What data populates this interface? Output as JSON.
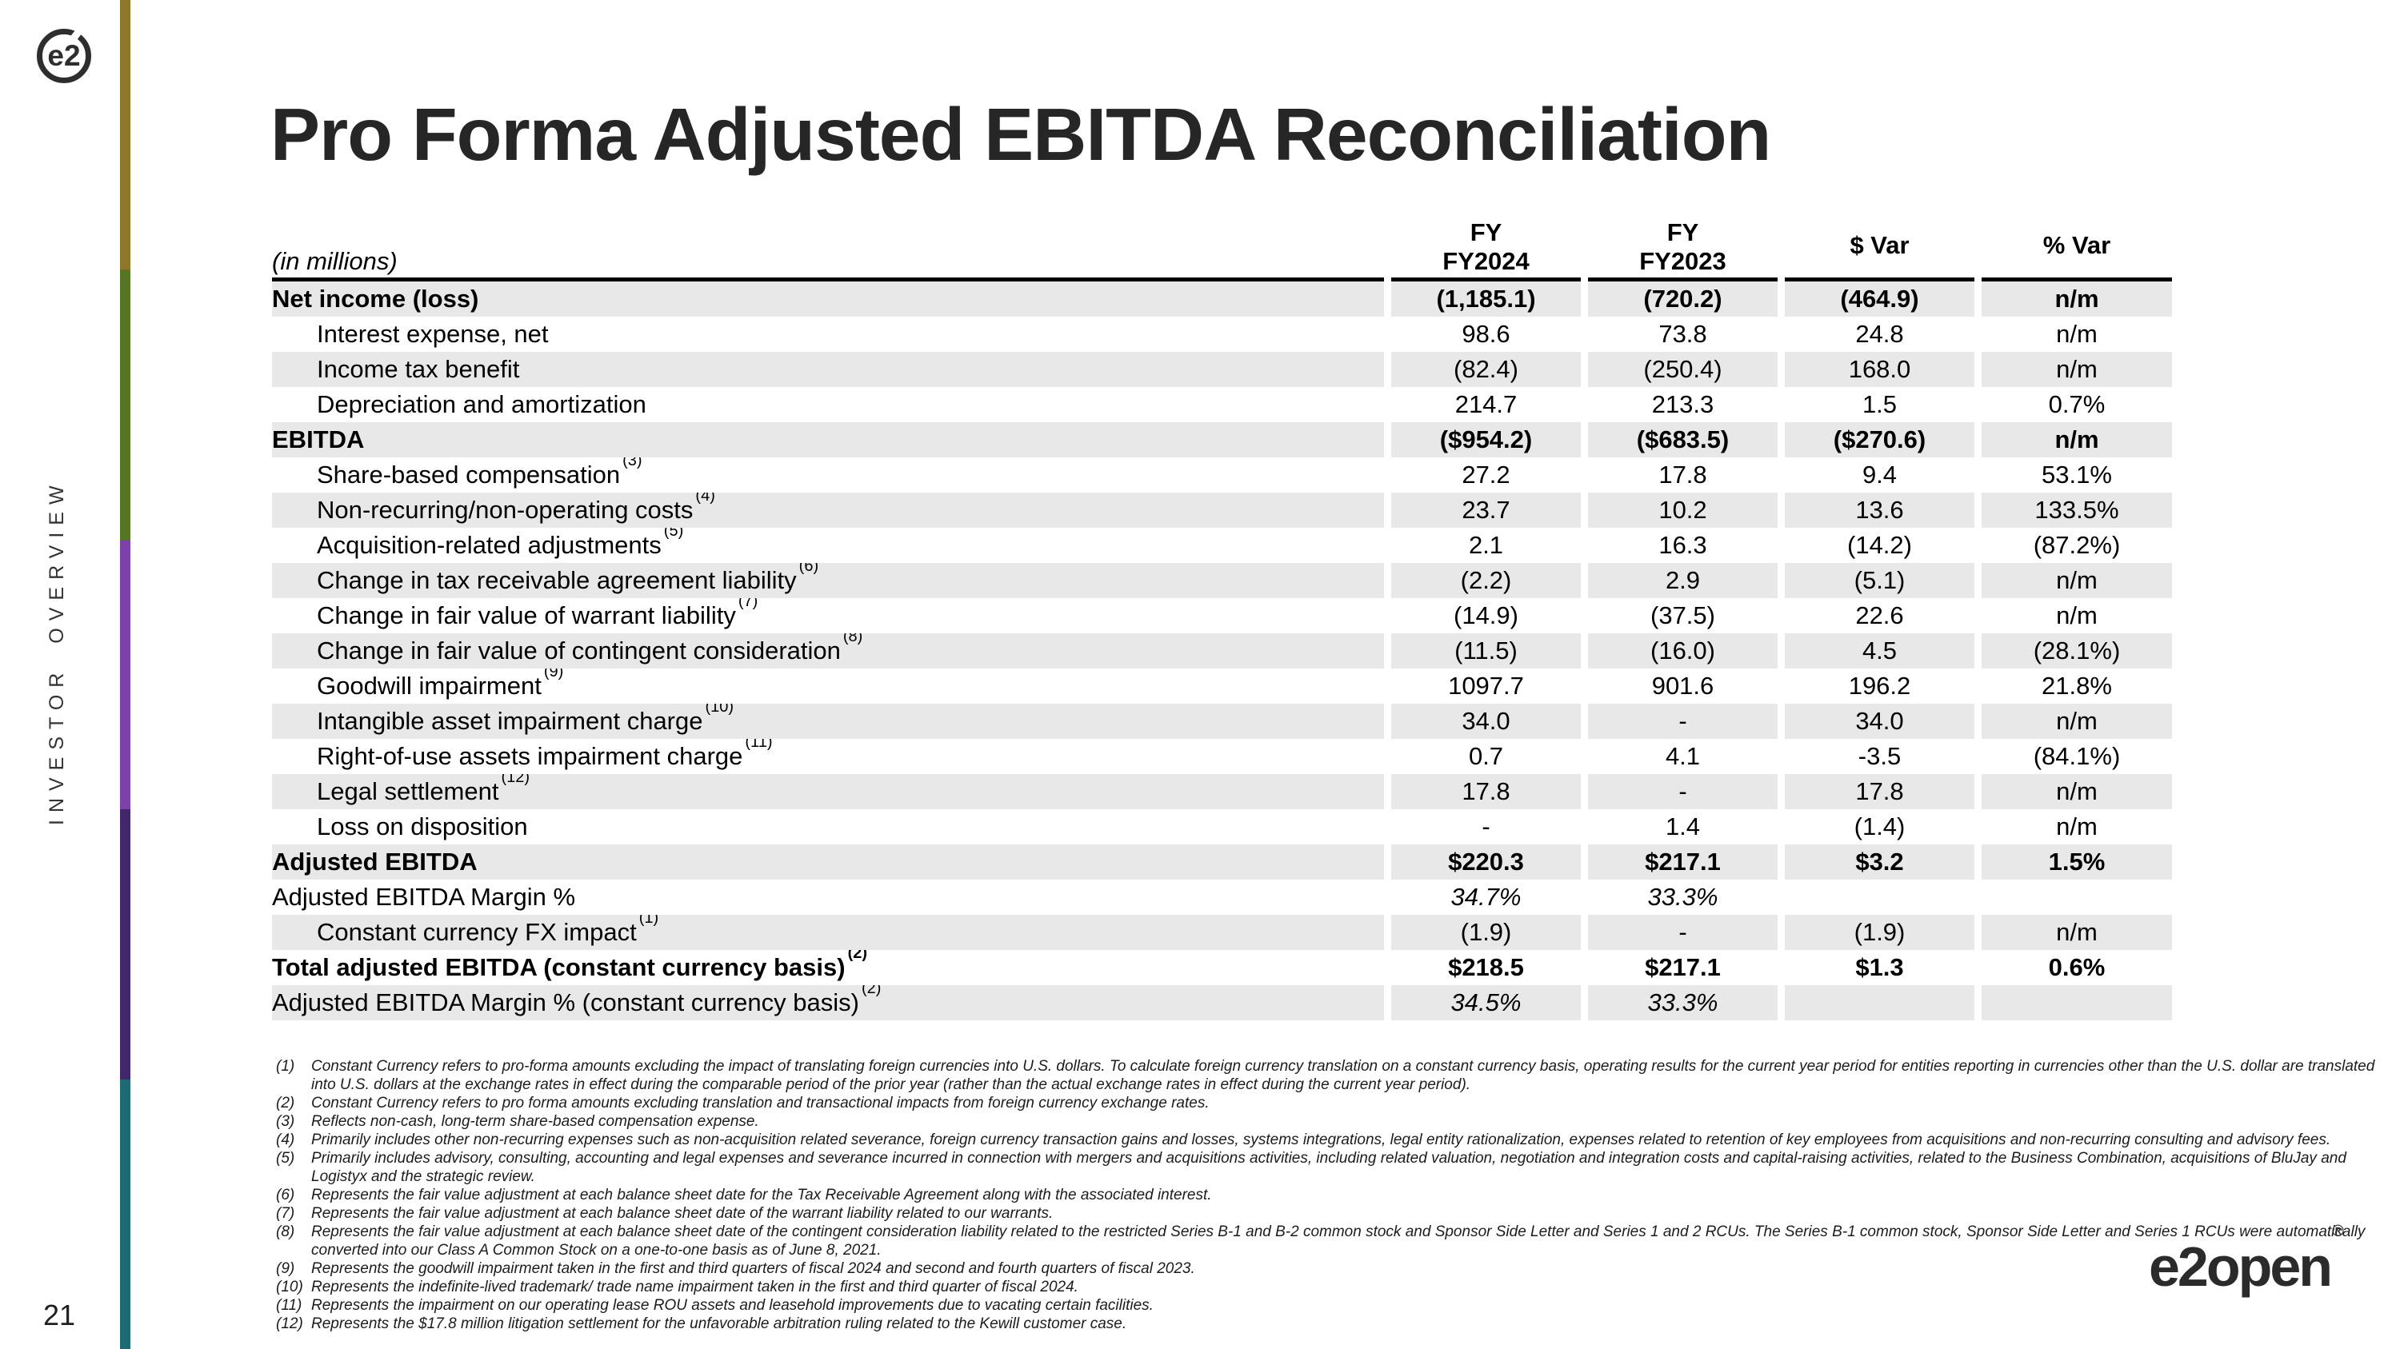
{
  "slide": {
    "title": "Pro Forma Adjusted EBITDA Reconciliation",
    "sidebar_label": "INVESTOR OVERVIEW",
    "page_number": "21",
    "logo_mark": "e2",
    "brand_text": "e2open",
    "brand_reg": "®"
  },
  "colors": {
    "row_shade": "#e8e8e8",
    "accent_gold": "#8c7828",
    "accent_green": "#557623",
    "accent_purple": "#7d42aa",
    "accent_dark_purple": "#42286a",
    "accent_teal": "#1e6a72"
  },
  "table": {
    "unit_label": "(in millions)",
    "columns": [
      {
        "line1": "FY",
        "line2": "FY2024"
      },
      {
        "line1": "FY",
        "line2": "FY2023"
      },
      {
        "line1": "$ Var",
        "line2": ""
      },
      {
        "line1": "% Var",
        "line2": ""
      }
    ],
    "rows": [
      {
        "label": "Net income (loss)",
        "values": [
          "(1,185.1)",
          "(720.2)",
          "(464.9)",
          "n/m"
        ]
      },
      {
        "label": "Interest expense, net",
        "values": [
          "98.6",
          "73.8",
          "24.8",
          "n/m"
        ]
      },
      {
        "label": "Income tax benefit",
        "values": [
          "(82.4)",
          "(250.4)",
          "168.0",
          "n/m"
        ]
      },
      {
        "label": "Depreciation and amortization",
        "values": [
          "214.7",
          "213.3",
          "1.5",
          "0.7%"
        ]
      },
      {
        "label": "EBITDA",
        "values": [
          "($954.2)",
          "($683.5)",
          "($270.6)",
          "n/m"
        ]
      },
      {
        "label": "Share-based compensation",
        "sup": "(3)",
        "values": [
          "27.2",
          "17.8",
          "9.4",
          "53.1%"
        ]
      },
      {
        "label": "Non-recurring/non-operating costs",
        "sup": "(4)",
        "values": [
          "23.7",
          "10.2",
          "13.6",
          "133.5%"
        ]
      },
      {
        "label": "Acquisition-related adjustments",
        "sup": "(5)",
        "values": [
          "2.1",
          "16.3",
          "(14.2)",
          "(87.2%)"
        ]
      },
      {
        "label": "Change in tax receivable agreement liability",
        "sup": "(6)",
        "values": [
          "(2.2)",
          "2.9",
          "(5.1)",
          "n/m"
        ]
      },
      {
        "label": "Change in fair value of warrant liability",
        "sup": "(7)",
        "values": [
          "(14.9)",
          "(37.5)",
          "22.6",
          "n/m"
        ]
      },
      {
        "label": "Change in fair value of contingent consideration",
        "sup": "(8)",
        "values": [
          "(11.5)",
          "(16.0)",
          "4.5",
          "(28.1%)"
        ]
      },
      {
        "label": "Goodwill impairment",
        "sup": "(9)",
        "values": [
          "1097.7",
          "901.6",
          "196.2",
          "21.8%"
        ]
      },
      {
        "label": "Intangible asset impairment charge",
        "sup": "(10)",
        "values": [
          "34.0",
          "-",
          "34.0",
          "n/m"
        ]
      },
      {
        "label": "Right-of-use assets impairment charge",
        "sup": "(11)",
        "values": [
          "0.7",
          "4.1",
          "-3.5",
          "(84.1%)"
        ]
      },
      {
        "label": "Legal settlement",
        "sup": "(12)",
        "values": [
          "17.8",
          "-",
          "17.8",
          "n/m"
        ]
      },
      {
        "label": "Loss on disposition",
        "values": [
          "-",
          "1.4",
          "(1.4)",
          "n/m"
        ]
      },
      {
        "label": "Adjusted EBITDA",
        "values": [
          "$220.3",
          "$217.1",
          "$3.2",
          "1.5%"
        ]
      },
      {
        "label": "Adjusted EBITDA Margin %",
        "values": [
          "34.7%",
          "33.3%",
          "",
          ""
        ]
      },
      {
        "label": "Constant currency FX impact",
        "sup": "(1)",
        "values": [
          "(1.9)",
          "-",
          "(1.9)",
          "n/m"
        ]
      },
      {
        "label": "Total adjusted EBITDA (constant currency basis)",
        "sup": "(2)",
        "values": [
          "$218.5",
          "$217.1",
          "$1.3",
          "0.6%"
        ]
      },
      {
        "label": "Adjusted EBITDA Margin % (constant currency basis)",
        "sup": "(2)",
        "values": [
          "34.5%",
          "33.3%",
          "",
          ""
        ]
      }
    ]
  },
  "footnotes": [
    {
      "num": "(1)",
      "text": "Constant Currency refers to pro-forma amounts excluding the impact of translating foreign currencies into U.S. dollars. To calculate foreign currency translation on a constant currency basis, operating results for the current year period for entities reporting in currencies other than the U.S. dollar are translated into U.S. dollars at the exchange rates in effect during the comparable period of the prior year (rather than the actual exchange rates in effect during the current year period)."
    },
    {
      "num": "(2)",
      "text": "Constant Currency refers to pro forma amounts excluding translation and transactional impacts from foreign currency exchange rates."
    },
    {
      "num": "(3)",
      "text": "Reflects non-cash, long-term share-based compensation expense."
    },
    {
      "num": "(4)",
      "text": "Primarily includes other non-recurring expenses such as non-acquisition related severance, foreign currency transaction gains and losses, systems integrations, legal entity rationalization, expenses related to retention of key employees from acquisitions and non-recurring consulting and advisory fees."
    },
    {
      "num": "(5)",
      "text": "Primarily includes advisory, consulting, accounting and legal expenses and severance incurred in connection with mergers and acquisitions activities, including related valuation, negotiation and integration costs and capital-raising activities, related to the Business Combination, acquisitions of BluJay and Logistyx and the strategic review."
    },
    {
      "num": "(6)",
      "text": "Represents the fair value adjustment at each balance sheet date for the Tax Receivable Agreement along with the associated interest."
    },
    {
      "num": "(7)",
      "text": "Represents the fair value adjustment at each balance sheet date of the warrant liability related to our warrants."
    },
    {
      "num": "(8)",
      "text": "Represents the fair value adjustment at each balance sheet date of the contingent consideration liability related to the restricted Series B-1 and B-2 common stock and Sponsor Side Letter and Series 1 and 2 RCUs. The Series B-1 common stock, Sponsor Side Letter and Series 1 RCUs were automatically converted into our Class A Common Stock on a one-to-one basis as of June 8, 2021."
    },
    {
      "num": "(9)",
      "text": "Represents the goodwill impairment taken in the first and third quarters of fiscal 2024 and second and fourth quarters of fiscal 2023."
    },
    {
      "num": "(10)",
      "text": "Represents the indefinite-lived trademark/ trade name impairment taken in the first and third quarter of fiscal 2024."
    },
    {
      "num": "(11)",
      "text": "Represents the impairment on our operating lease ROU assets and leasehold improvements due to vacating certain facilities."
    },
    {
      "num": "(12)",
      "text": "Represents the $17.8 million litigation settlement for the unfavorable arbitration ruling related to the Kewill customer case."
    }
  ]
}
